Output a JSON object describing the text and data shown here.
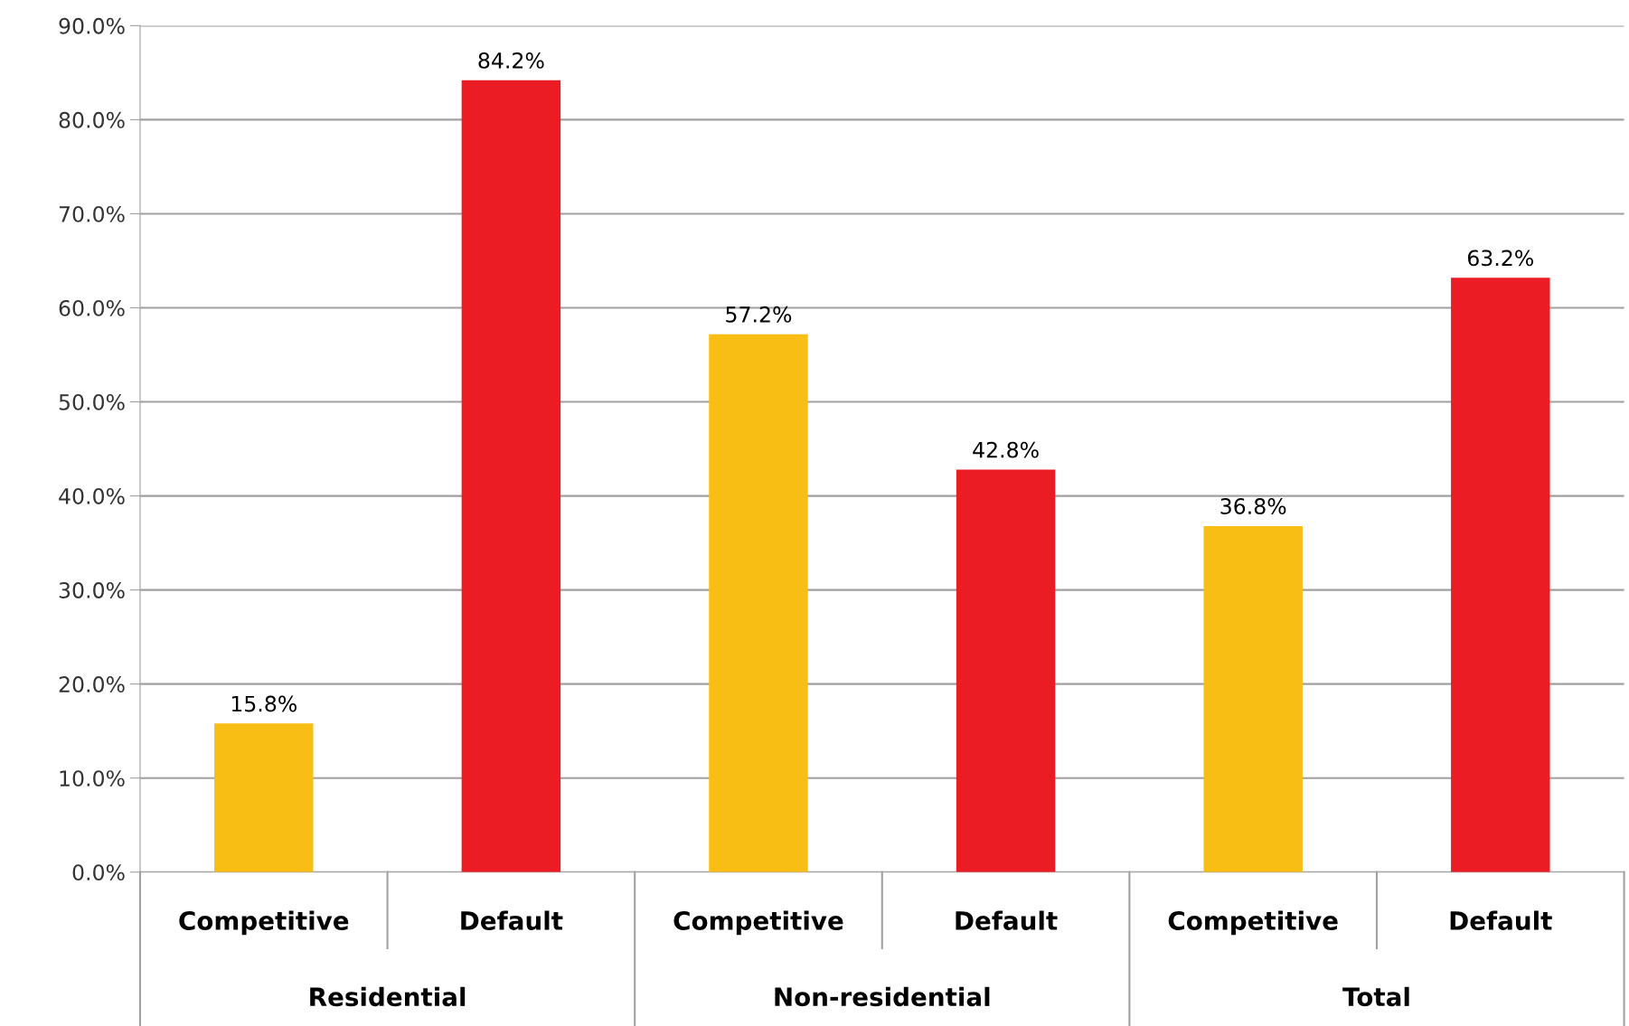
{
  "chart_data": {
    "type": "bar",
    "categories": [
      "Competitive",
      "Default",
      "Competitive",
      "Default",
      "Competitive",
      "Default"
    ],
    "values": [
      15.8,
      84.2,
      57.2,
      42.8,
      36.8,
      63.2
    ],
    "colors": [
      "#f9be14",
      "#ec1c24",
      "#f9be14",
      "#ec1c24",
      "#f9be14",
      "#ec1c24"
    ],
    "value_labels": [
      "15.8%",
      "84.2%",
      "57.2%",
      "42.8%",
      "36.8%",
      "63.2%"
    ],
    "ylim": [
      0,
      90
    ],
    "yticks": [
      {
        "value": 0,
        "label": "0.0%"
      },
      {
        "value": 10,
        "label": "10.0%"
      },
      {
        "value": 20,
        "label": "20.0%"
      },
      {
        "value": 30,
        "label": "30.0%"
      },
      {
        "value": 40,
        "label": "40.0%"
      },
      {
        "value": 50,
        "label": "50.0%"
      },
      {
        "value": 60,
        "label": "60.0%"
      },
      {
        "value": 70,
        "label": "70.0%"
      },
      {
        "value": 80,
        "label": "80.0%"
      },
      {
        "value": 90,
        "label": "90.0%"
      }
    ],
    "grid": "y",
    "legend": false,
    "annotations": [
      "Residential",
      "Non-residential",
      "Total"
    ]
  }
}
